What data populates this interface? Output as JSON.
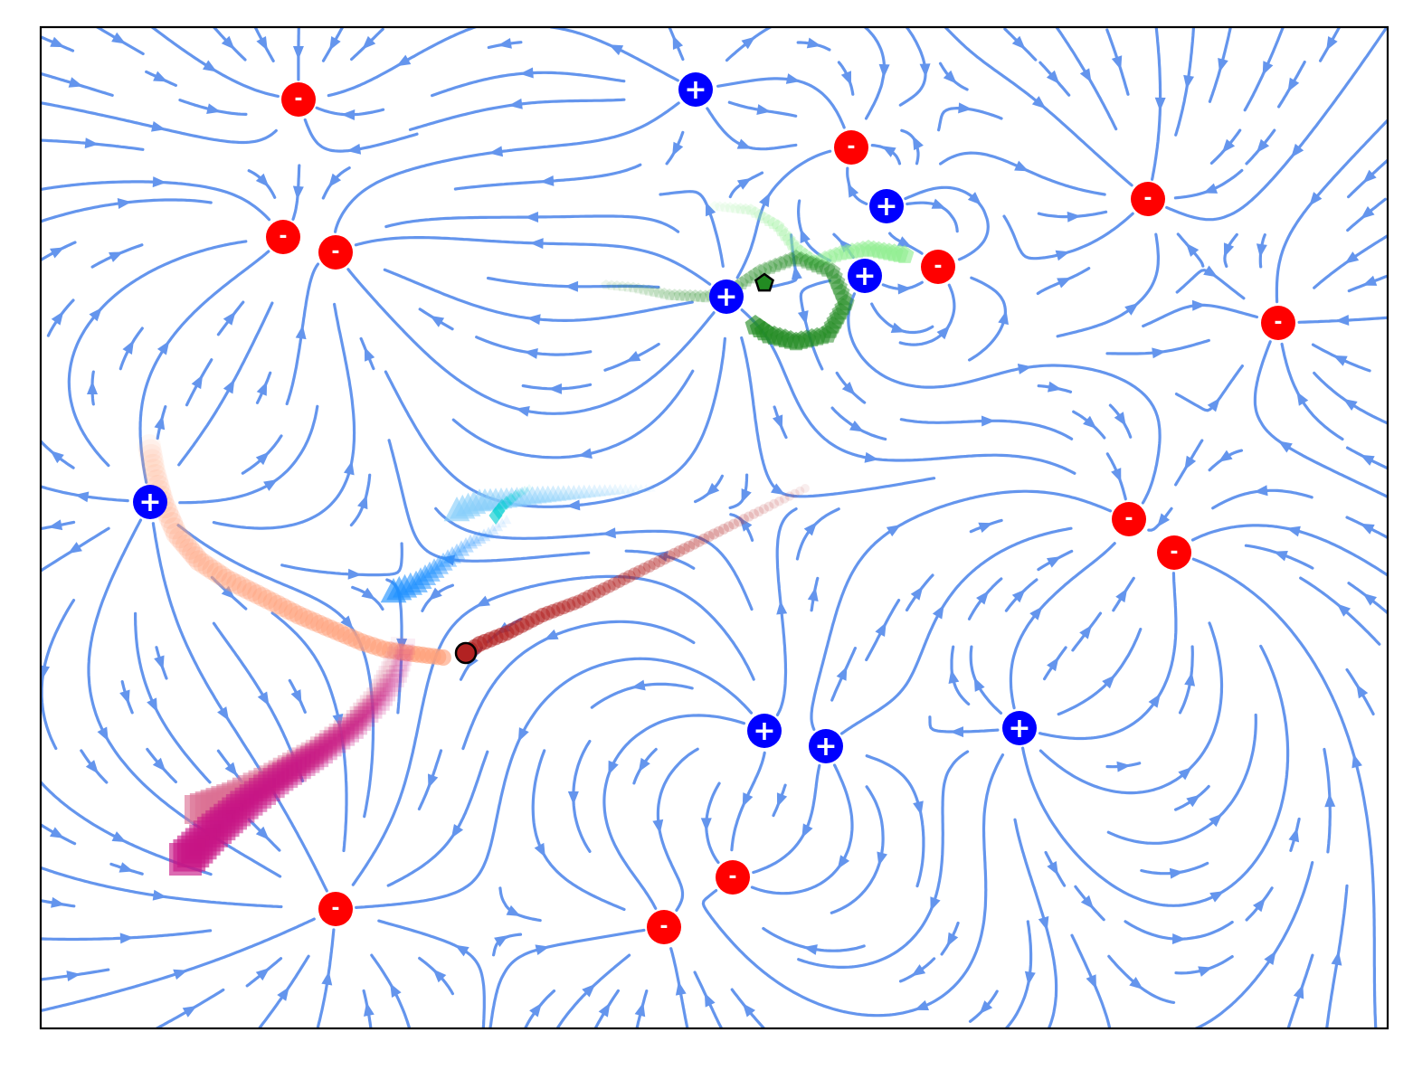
{
  "figure": {
    "background": "#ffffff",
    "frame_color": "#000000",
    "stream_color": "#6495ed"
  },
  "charges": [
    {
      "sign": "+",
      "color": "#0000ff",
      "symbol": "+"
    },
    {
      "sign": "+",
      "color": "#0000ff",
      "symbol": "+"
    },
    {
      "sign": "+",
      "color": "#0000ff",
      "symbol": "+"
    },
    {
      "sign": "+",
      "color": "#0000ff",
      "symbol": "+"
    },
    {
      "sign": "+",
      "color": "#0000ff",
      "symbol": "+"
    },
    {
      "sign": "+",
      "color": "#0000ff",
      "symbol": "+"
    },
    {
      "sign": "+",
      "color": "#0000ff",
      "symbol": "+"
    },
    {
      "sign": "+",
      "color": "#0000ff",
      "symbol": "+"
    },
    {
      "sign": "-",
      "color": "#ff0000",
      "symbol": "-"
    },
    {
      "sign": "-",
      "color": "#ff0000",
      "symbol": "-"
    },
    {
      "sign": "-",
      "color": "#ff0000",
      "symbol": "-"
    },
    {
      "sign": "-",
      "color": "#ff0000",
      "symbol": "-"
    },
    {
      "sign": "-",
      "color": "#ff0000",
      "symbol": "-"
    },
    {
      "sign": "-",
      "color": "#ff0000",
      "symbol": "-"
    },
    {
      "sign": "-",
      "color": "#ff0000",
      "symbol": "-"
    },
    {
      "sign": "-",
      "color": "#ff0000",
      "symbol": "-"
    },
    {
      "sign": "-",
      "color": "#ff0000",
      "symbol": "-"
    },
    {
      "sign": "-",
      "color": "#ff0000",
      "symbol": "-"
    },
    {
      "sign": "-",
      "color": "#ff0000",
      "symbol": "-"
    },
    {
      "sign": "-",
      "color": "#ff0000",
      "symbol": "-"
    }
  ],
  "trajectories": [
    {
      "marker": "pentagon",
      "color": "#90ee90"
    },
    {
      "marker": "pentagon",
      "color": "#228b22"
    },
    {
      "marker": "circle",
      "color": "#ffa07a"
    },
    {
      "marker": "circle",
      "color": "#b22222"
    },
    {
      "marker": "square",
      "color": "#db7093"
    },
    {
      "marker": "square",
      "color": "#c71585"
    },
    {
      "marker": "triangle",
      "color": "#87cefa"
    },
    {
      "marker": "triangle",
      "color": "#1e90ff"
    },
    {
      "marker": "diamond",
      "color": "#00ced1"
    }
  ]
}
